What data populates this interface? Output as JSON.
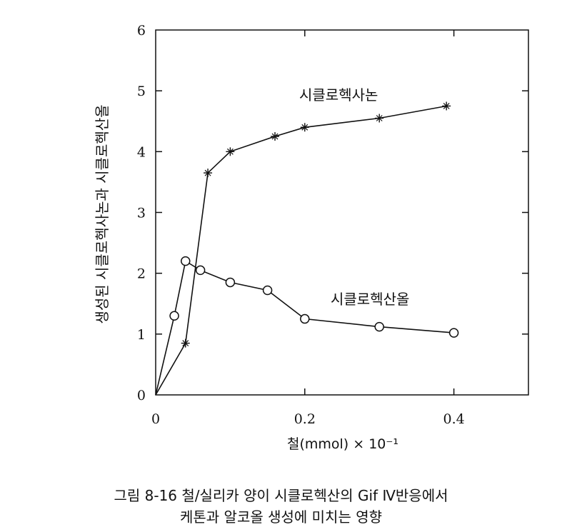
{
  "chart_data": {
    "type": "line",
    "ylabel": "생성된 시클로헥사논과 시클로헥산올",
    "xlabel": "철(mmol) × 10⁻¹",
    "xlim": [
      0,
      0.5
    ],
    "ylim": [
      0,
      6
    ],
    "x_ticks": [
      "0",
      "0.2",
      "0.4"
    ],
    "y_ticks": [
      "0",
      "1",
      "2",
      "3",
      "4",
      "5",
      "6"
    ],
    "grid": false,
    "series": [
      {
        "name": "시클로헥사논",
        "marker": "star",
        "x": [
          0,
          0.04,
          0.07,
          0.1,
          0.16,
          0.2,
          0.3,
          0.39
        ],
        "y": [
          0,
          0.85,
          3.65,
          4.0,
          4.25,
          4.4,
          4.55,
          4.75
        ]
      },
      {
        "name": "시클로헥산올",
        "marker": "circle",
        "x": [
          0,
          0.025,
          0.04,
          0.06,
          0.1,
          0.15,
          0.2,
          0.3,
          0.4
        ],
        "y": [
          0,
          1.3,
          2.2,
          2.05,
          1.85,
          1.72,
          1.25,
          1.12,
          1.02
        ]
      }
    ]
  },
  "caption": {
    "line1": "그림 8-16 철/실리카 양이 시클로헥산의 Gif Ⅳ반응에서",
    "line2": "케톤과 알코올 생성에 미치는 영향"
  }
}
